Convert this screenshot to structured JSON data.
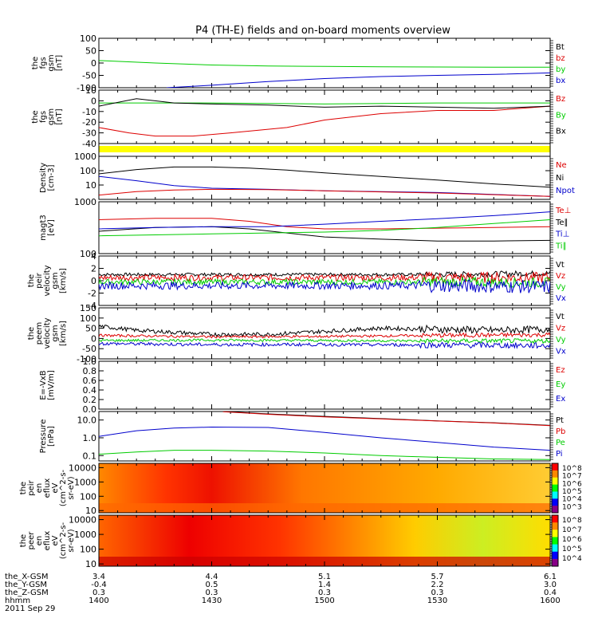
{
  "title": "P4 (TH-E) fields and on-board moments overview",
  "colors": {
    "black": "#000000",
    "red": "#dd0000",
    "green": "#00cc00",
    "blue": "#0000cc",
    "yellow": "#ffff00"
  },
  "panels": [
    {
      "id": "fgs1",
      "ylabel": [
        "the",
        "fgs",
        "gsm",
        "[nT]"
      ],
      "yticks": [
        "100",
        "50",
        "0",
        "-50",
        "-100"
      ],
      "legend": [
        {
          "label": "Bt",
          "color": "black"
        },
        {
          "label": "bz",
          "color": "red"
        },
        {
          "label": "by",
          "color": "green"
        },
        {
          "label": "bx",
          "color": "blue"
        }
      ]
    },
    {
      "id": "fgs2",
      "ylabel": [
        "the",
        "fgs",
        "gsm",
        "[nT]"
      ],
      "yticks": [
        "10",
        "0",
        "-10",
        "-20",
        "-30",
        "-40"
      ],
      "legend": [
        {
          "label": "Bz",
          "color": "red"
        },
        {
          "label": "By",
          "color": "green"
        },
        {
          "label": "Bx",
          "color": "black"
        }
      ]
    },
    {
      "id": "density",
      "ylabel": [
        "Density",
        "[cm-3]"
      ],
      "yticks": [
        "1000",
        "100",
        "10"
      ],
      "legend": [
        {
          "label": "Ne",
          "color": "red"
        },
        {
          "label": "Ni",
          "color": "black"
        },
        {
          "label": "Npot",
          "color": "blue"
        }
      ]
    },
    {
      "id": "temp",
      "ylabel": [
        "magt3",
        "[eV]"
      ],
      "yticks": [
        "1000",
        "100"
      ],
      "legend": [
        {
          "label": "Te⊥",
          "color": "red"
        },
        {
          "label": "Te∥",
          "color": "black"
        },
        {
          "label": "Ti⊥",
          "color": "blue"
        },
        {
          "label": "Ti∥",
          "color": "green"
        }
      ]
    },
    {
      "id": "vel1",
      "ylabel": [
        "the",
        "peir",
        "velocity",
        "gsm",
        "[km/s]"
      ],
      "yticks": [
        "4",
        "2",
        "0",
        "-2",
        "-4"
      ],
      "legend": [
        {
          "label": "Vt",
          "color": "black"
        },
        {
          "label": "Vz",
          "color": "red"
        },
        {
          "label": "Vy",
          "color": "green"
        },
        {
          "label": "Vx",
          "color": "blue"
        }
      ]
    },
    {
      "id": "vel2",
      "ylabel": [
        "the",
        "peem",
        "velocity",
        "gsm",
        "[km/s]"
      ],
      "yticks": [
        "150",
        "100",
        "50",
        "0",
        "-50",
        "-100"
      ],
      "legend": [
        {
          "label": "Vt",
          "color": "black"
        },
        {
          "label": "Vz",
          "color": "red"
        },
        {
          "label": "Vy",
          "color": "green"
        },
        {
          "label": "Vx",
          "color": "blue"
        }
      ]
    },
    {
      "id": "efield",
      "ylabel": [
        "E=-VxB",
        "[mV/m]"
      ],
      "yticks": [
        "1.0",
        "0.8",
        "0.6",
        "0.4",
        "0.2",
        "0.0"
      ],
      "legend": [
        {
          "label": "Ez",
          "color": "red"
        },
        {
          "label": "Ey",
          "color": "green"
        },
        {
          "label": "Ex",
          "color": "blue"
        }
      ]
    },
    {
      "id": "pressure",
      "ylabel": [
        "Pressure",
        "[nPa]"
      ],
      "yticks": [
        "10.0",
        "1.0",
        "0.1"
      ],
      "legend": [
        {
          "label": "Pt",
          "color": "black"
        },
        {
          "label": "Pb",
          "color": "red"
        },
        {
          "label": "Pe",
          "color": "green"
        },
        {
          "label": "Pi",
          "color": "blue"
        }
      ]
    },
    {
      "id": "peir_spec",
      "ylabel": [
        "the",
        "peir",
        "en",
        "eflux",
        "eV",
        "(cm^2-s-",
        "sr-eV)"
      ],
      "yticks": [
        "10000",
        "1000",
        "100",
        "10"
      ],
      "cbar": [
        "10^8",
        "10^7",
        "10^6",
        "10^5",
        "10^4",
        "10^3"
      ]
    },
    {
      "id": "peer_spec",
      "ylabel": [
        "the",
        "peer",
        "en",
        "eflux",
        "eV",
        "(cm^2-s-",
        "sr-eV)"
      ],
      "yticks": [
        "10000",
        "1000",
        "100",
        "10"
      ],
      "cbar": [
        "10^8",
        "10^7",
        "10^6",
        "10^5",
        "10^4"
      ]
    }
  ],
  "ephemeris": {
    "rows": [
      {
        "label": "the_X-GSM",
        "values": [
          "3.4",
          "4.4",
          "5.1",
          "5.7",
          "6.1"
        ]
      },
      {
        "label": "the_Y-GSM",
        "values": [
          "-0.4",
          "0.5",
          "1.4",
          "2.2",
          "3.0"
        ]
      },
      {
        "label": "the_Z-GSM",
        "values": [
          "0.3",
          "0.3",
          "0.3",
          "0.3",
          "0.4"
        ]
      },
      {
        "label": "hhmm",
        "values": [
          "1400",
          "1430",
          "1500",
          "1530",
          "1600"
        ]
      }
    ],
    "date": "2011 Sep 29"
  },
  "chart_data": {
    "type": "line",
    "title": "P4 (TH-E) fields and on-board moments overview",
    "x_times": [
      "1400",
      "1430",
      "1500",
      "1530",
      "1600"
    ],
    "series": [
      {
        "panel": "fgs1",
        "name": "by",
        "color": "green",
        "x": [
          1400,
          1415,
          1430,
          1445,
          1500,
          1515,
          1530,
          1545,
          1600
        ],
        "y": [
          10,
          0,
          -8,
          -12,
          -14,
          -15,
          -16,
          -17,
          -17
        ]
      },
      {
        "panel": "fgs1",
        "name": "bx",
        "color": "blue",
        "x": [
          1418,
          1430,
          1445,
          1500,
          1515,
          1530,
          1545,
          1600
        ],
        "y": [
          -100,
          -90,
          -75,
          -63,
          -55,
          -50,
          -46,
          -40
        ]
      },
      {
        "panel": "fgs2",
        "name": "Bz",
        "color": "red",
        "x": [
          1400,
          1408,
          1415,
          1425,
          1435,
          1450,
          1500,
          1515,
          1530,
          1545,
          1600
        ],
        "y": [
          -25,
          -30,
          -33,
          -33,
          -30,
          -25,
          -18,
          -12,
          -9,
          -9,
          -5
        ]
      },
      {
        "panel": "fgs2",
        "name": "By",
        "color": "green",
        "x": [
          1400,
          1430,
          1500,
          1530,
          1600
        ],
        "y": [
          -2,
          -2,
          -3,
          -2,
          -2
        ]
      },
      {
        "panel": "fgs2",
        "name": "Bx",
        "color": "black",
        "x": [
          1400,
          1410,
          1420,
          1430,
          1445,
          1500,
          1515,
          1530,
          1545,
          1600
        ],
        "y": [
          -5,
          2,
          -2,
          -3,
          -4,
          -6,
          -5,
          -6,
          -7,
          -5
        ]
      },
      {
        "panel": "density",
        "name": "Ni",
        "color": "black",
        "x": [
          1400,
          1410,
          1420,
          1430,
          1440,
          1450,
          1500,
          1515,
          1530,
          1545,
          1600
        ],
        "y": [
          60,
          120,
          180,
          180,
          150,
          110,
          70,
          40,
          22,
          12,
          7
        ]
      },
      {
        "panel": "density",
        "name": "Npot",
        "color": "blue",
        "x": [
          1400,
          1410,
          1420,
          1430,
          1445,
          1500,
          1530,
          1600
        ],
        "y": [
          40,
          20,
          9,
          6,
          5,
          4,
          3,
          1.6
        ]
      },
      {
        "panel": "density",
        "name": "Ne",
        "color": "red",
        "x": [
          1400,
          1410,
          1420,
          1430,
          1445,
          1500,
          1530,
          1600
        ],
        "y": [
          2,
          3.5,
          4.5,
          5,
          4.8,
          4,
          2.8,
          1.6
        ]
      },
      {
        "panel": "temp",
        "name": "Te⊥",
        "color": "red",
        "x": [
          1400,
          1415,
          1430,
          1440,
          1450,
          1500,
          1515,
          1530,
          1545,
          1600
        ],
        "y": [
          450,
          480,
          480,
          420,
          330,
          300,
          300,
          310,
          320,
          330
        ]
      },
      {
        "panel": "temp",
        "name": "Te∥",
        "color": "black",
        "x": [
          1400,
          1415,
          1430,
          1440,
          1450,
          1500,
          1515,
          1530,
          1545,
          1600
        ],
        "y": [
          270,
          320,
          330,
          300,
          250,
          210,
          190,
          175,
          175,
          180
        ]
      },
      {
        "panel": "temp",
        "name": "Ti⊥",
        "color": "blue",
        "x": [
          1400,
          1415,
          1430,
          1445,
          1500,
          1515,
          1530,
          1545,
          1600
        ],
        "y": [
          300,
          320,
          330,
          330,
          370,
          420,
          470,
          540,
          640
        ]
      },
      {
        "panel": "temp",
        "name": "Ti∥",
        "color": "green",
        "x": [
          1400,
          1415,
          1430,
          1445,
          1500,
          1515,
          1530,
          1545,
          1600
        ],
        "y": [
          220,
          230,
          240,
          250,
          260,
          280,
          320,
          380,
          450
        ]
      },
      {
        "panel": "vel1",
        "name": "Vt",
        "color": "black",
        "x": [
          1400,
          1430,
          1500,
          1530,
          1600
        ],
        "y": [
          1,
          1,
          1,
          1,
          1.2
        ]
      },
      {
        "panel": "vel1",
        "name": "Vz",
        "color": "red",
        "x": [
          1400,
          1430,
          1500,
          1530,
          1600
        ],
        "y": [
          0.5,
          0.5,
          0.5,
          0.5,
          0.5
        ]
      },
      {
        "panel": "vel1",
        "name": "Vy",
        "color": "green",
        "x": [
          1400,
          1430,
          1500,
          1530,
          1600
        ],
        "y": [
          -0.2,
          -0.2,
          -0.2,
          -0.2,
          -0.3
        ]
      },
      {
        "panel": "vel1",
        "name": "Vx",
        "color": "blue",
        "x": [
          1400,
          1430,
          1500,
          1530,
          1600
        ],
        "y": [
          -0.8,
          -0.8,
          -0.8,
          -0.8,
          -1
        ]
      },
      {
        "panel": "vel2",
        "name": "Vt",
        "color": "black",
        "x": [
          1400,
          1410,
          1420,
          1430,
          1445,
          1500,
          1515,
          1530,
          1545,
          1600
        ],
        "y": [
          60,
          40,
          30,
          20,
          20,
          35,
          50,
          45,
          40,
          45
        ]
      },
      {
        "panel": "vel2",
        "name": "Vz",
        "color": "red",
        "x": [
          1400,
          1430,
          1500,
          1530,
          1600
        ],
        "y": [
          15,
          8,
          10,
          15,
          18
        ]
      },
      {
        "panel": "vel2",
        "name": "Vy",
        "color": "green",
        "x": [
          1400,
          1430,
          1500,
          1530,
          1600
        ],
        "y": [
          -10,
          -8,
          -10,
          -12,
          -12
        ]
      },
      {
        "panel": "vel2",
        "name": "Vx",
        "color": "blue",
        "x": [
          1400,
          1430,
          1500,
          1530,
          1600
        ],
        "y": [
          -25,
          -30,
          -30,
          -32,
          -35
        ]
      },
      {
        "panel": "pressure",
        "name": "Pt",
        "color": "black",
        "x": [
          1433,
          1445,
          1500,
          1515,
          1530,
          1545,
          1600
        ],
        "y": [
          30,
          22,
          16,
          12,
          9,
          7,
          5
        ]
      },
      {
        "panel": "pressure",
        "name": "Pb",
        "color": "red",
        "x": [
          1433,
          1445,
          1500,
          1515,
          1530,
          1545,
          1600
        ],
        "y": [
          29,
          21,
          15,
          11.5,
          8.8,
          6.8,
          4.8
        ]
      },
      {
        "panel": "pressure",
        "name": "Pi",
        "color": "blue",
        "x": [
          1400,
          1410,
          1420,
          1430,
          1445,
          1500,
          1515,
          1530,
          1545,
          1600
        ],
        "y": [
          1.2,
          2.5,
          3.5,
          4,
          3.8,
          2,
          1,
          0.55,
          0.3,
          0.2
        ]
      },
      {
        "panel": "pressure",
        "name": "Pe",
        "color": "green",
        "x": [
          1400,
          1410,
          1420,
          1430,
          1445,
          1500,
          1515,
          1530,
          1545,
          1600
        ],
        "y": [
          0.12,
          0.16,
          0.2,
          0.2,
          0.18,
          0.14,
          0.1,
          0.08,
          0.065,
          0.06
        ]
      }
    ]
  }
}
